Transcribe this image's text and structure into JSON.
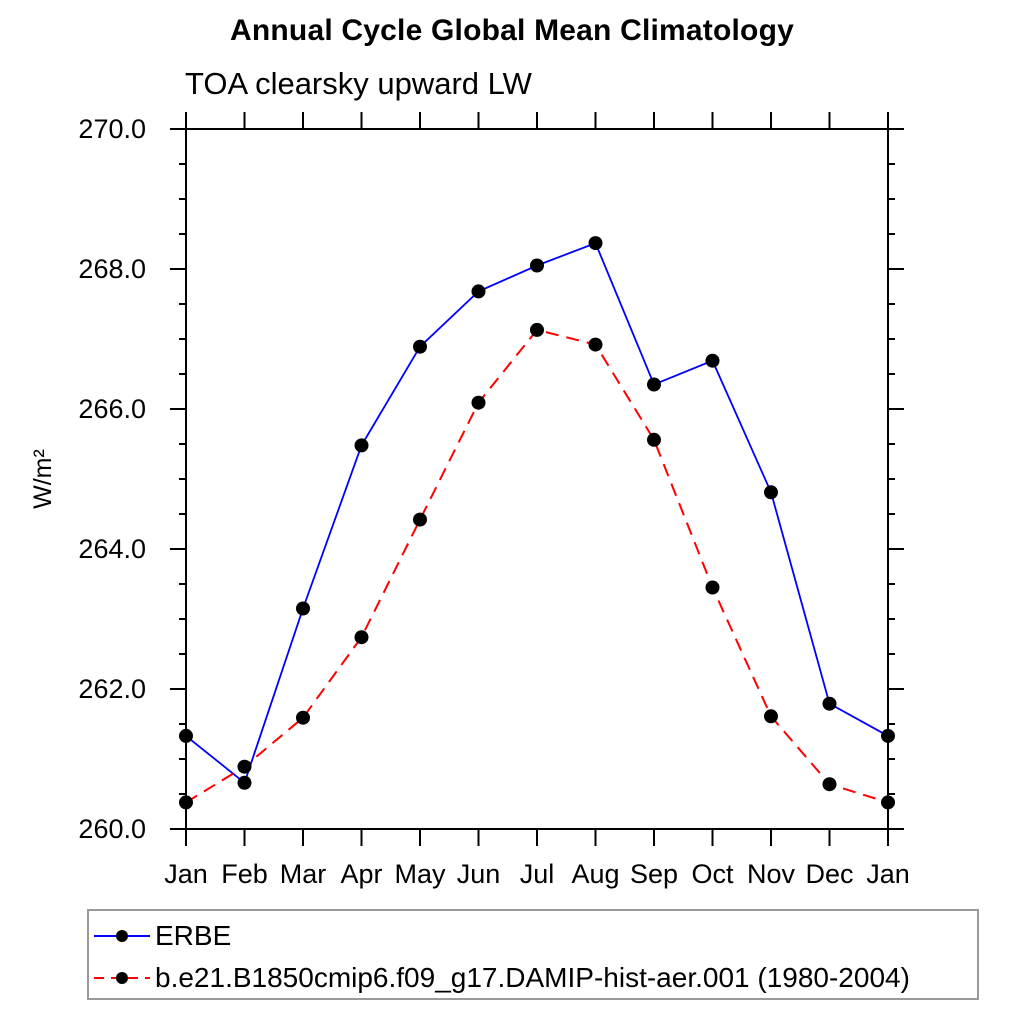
{
  "title": "Annual Cycle Global Mean Climatology",
  "subtitle": "TOA clearsky upward LW",
  "chart_data": {
    "type": "line",
    "categories": [
      "Jan",
      "Feb",
      "Mar",
      "Apr",
      "May",
      "Jun",
      "Jul",
      "Aug",
      "Sep",
      "Oct",
      "Nov",
      "Dec",
      "Jan"
    ],
    "ylabel": "W/m²",
    "ylim": [
      260.0,
      270.0
    ],
    "ytick_major": 2.0,
    "ytick_minor": 0.5,
    "ytick_labels": [
      "260.0",
      "262.0",
      "264.0",
      "266.0",
      "268.0",
      "270.0"
    ],
    "grid": false,
    "legend_position": "bottom",
    "marker": "filled-circle",
    "marker_color": "#000000",
    "series": [
      {
        "name": "ERBE",
        "color": "#0000ff",
        "style": "solid",
        "values": [
          261.33,
          260.66,
          263.15,
          265.48,
          266.89,
          267.68,
          268.05,
          268.37,
          266.35,
          266.69,
          264.81,
          261.79,
          261.33
        ]
      },
      {
        "name": "b.e21.B1850cmip6.f09_g17.DAMIP-hist-aer.001 (1980-2004)",
        "color": "#ff0000",
        "style": "dashed",
        "values": [
          260.38,
          260.89,
          261.59,
          262.74,
          264.42,
          266.09,
          267.13,
          266.92,
          265.56,
          263.45,
          261.61,
          260.64,
          260.38
        ]
      }
    ]
  }
}
